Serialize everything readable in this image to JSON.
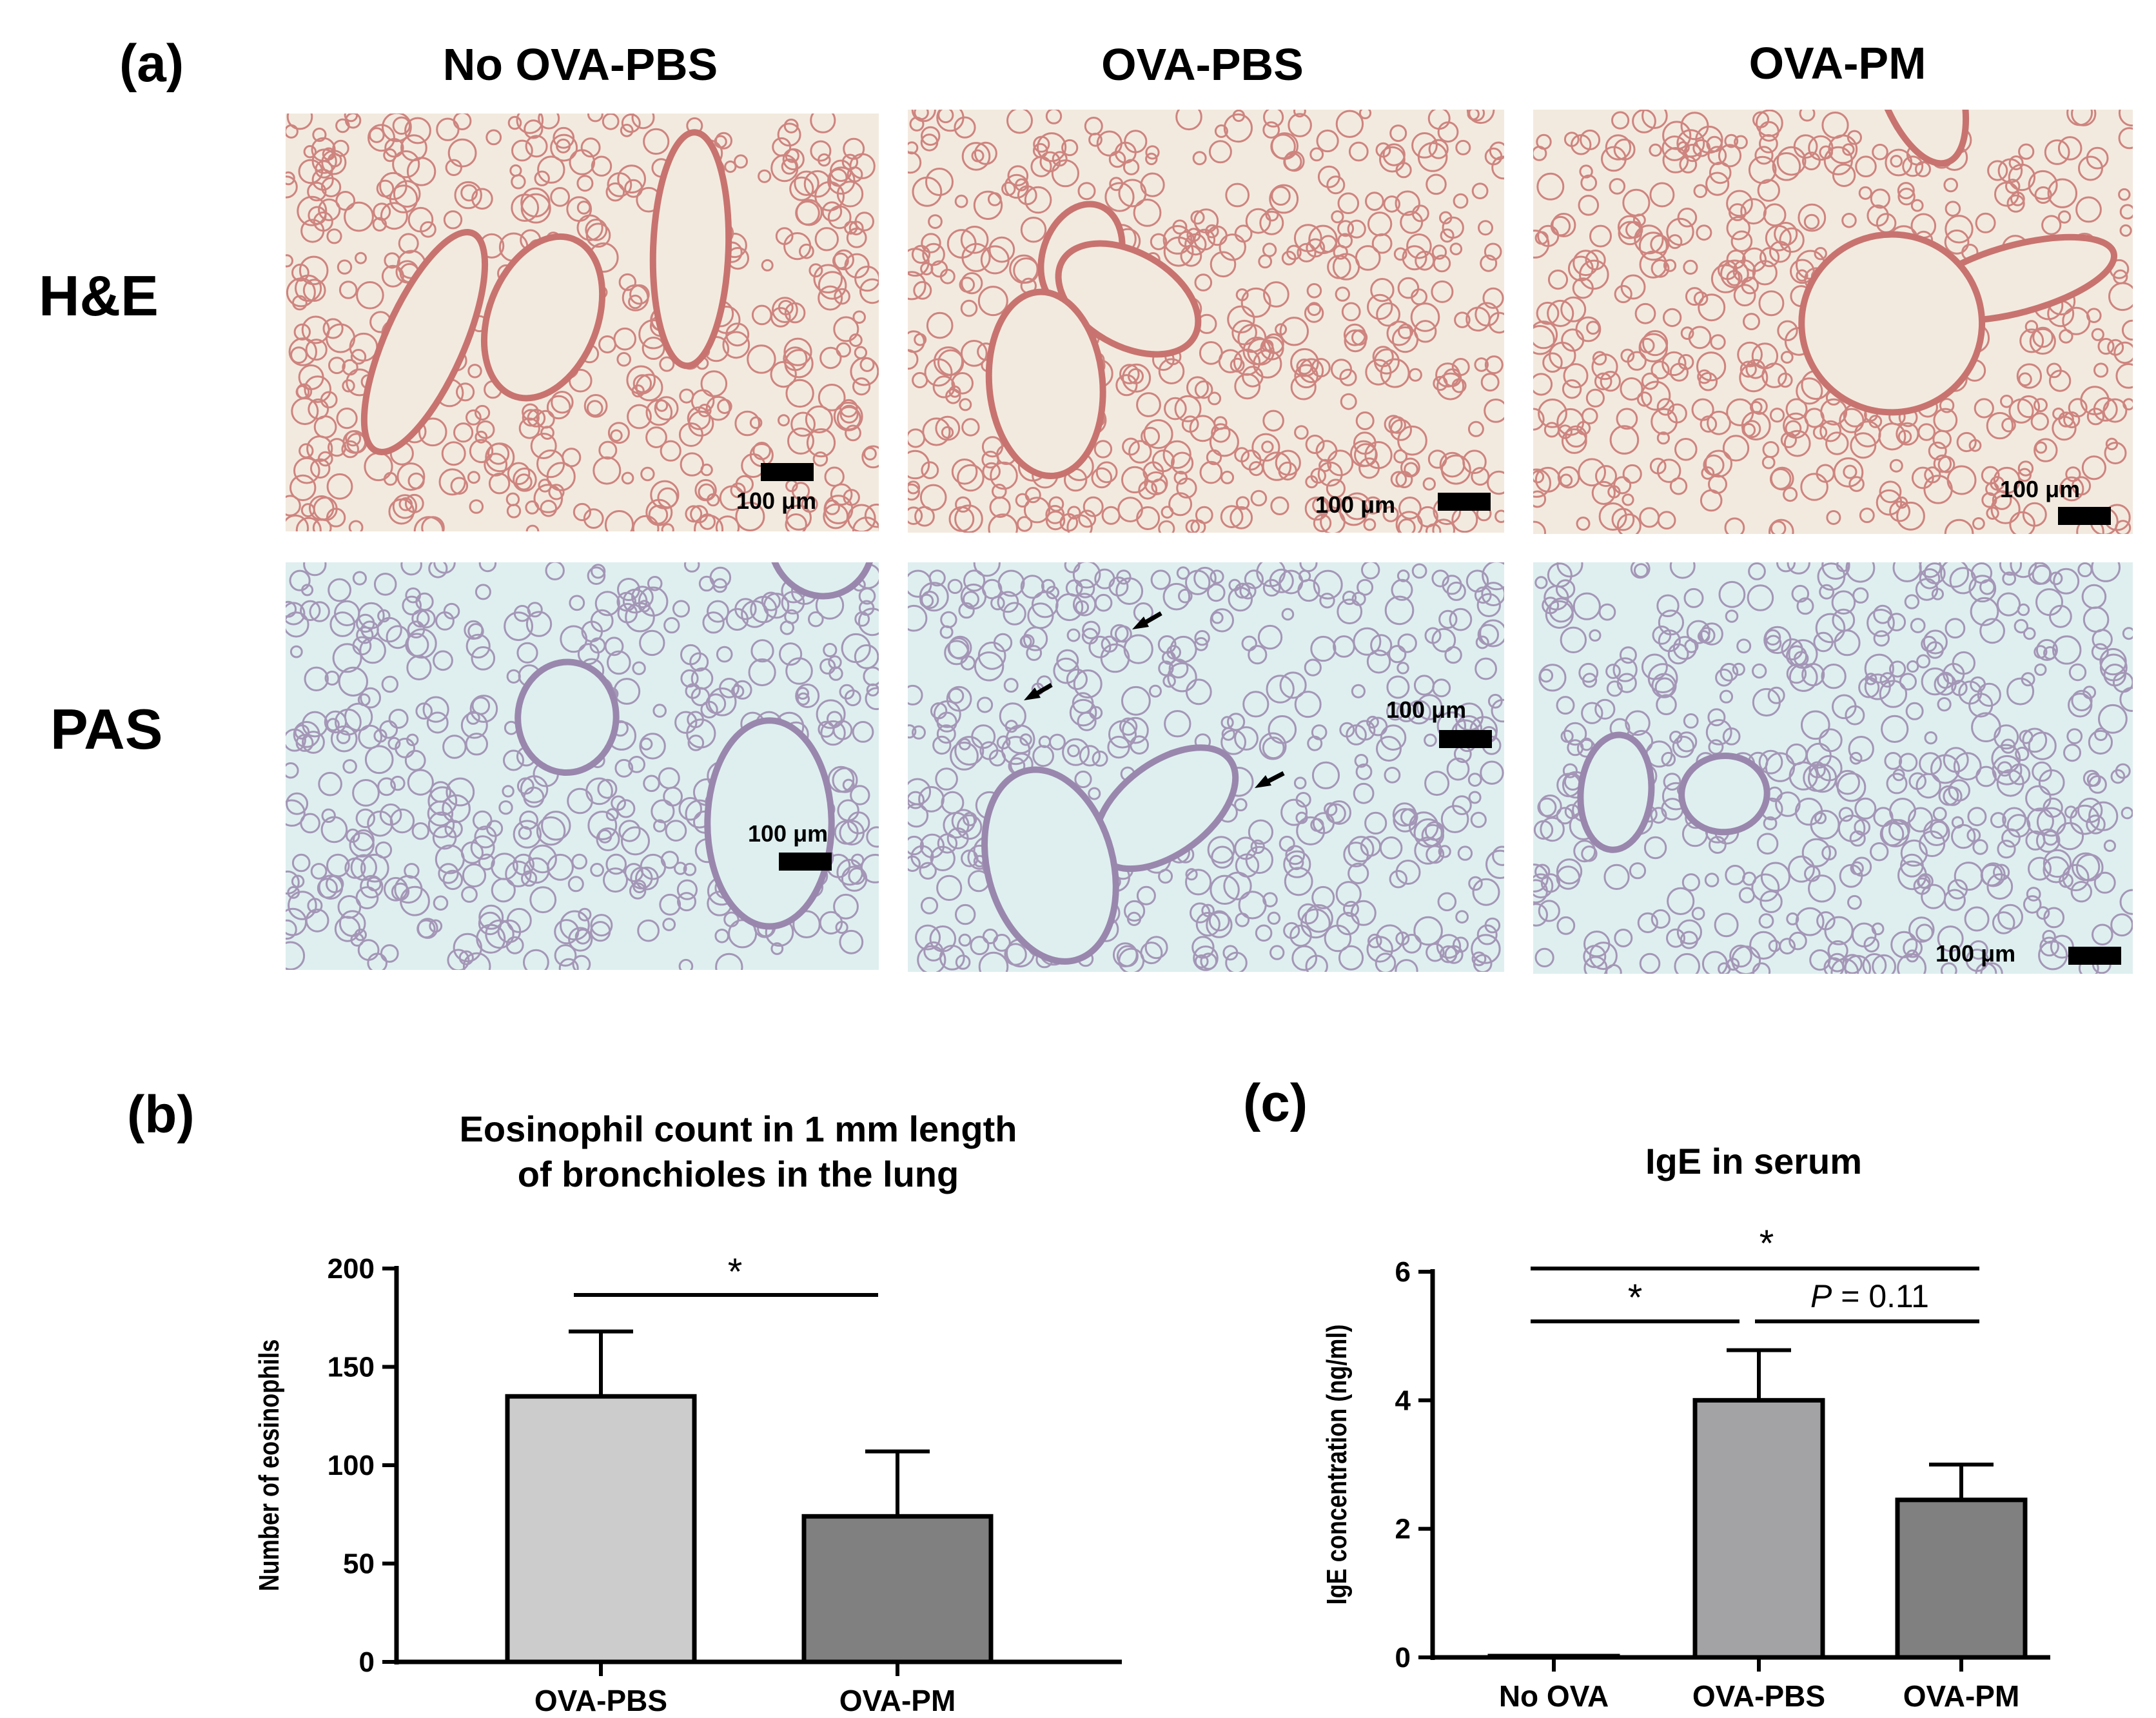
{
  "panel_a": {
    "letter": "(a)",
    "columns": [
      "No OVA-PBS",
      "OVA-PBS",
      "OVA-PM"
    ],
    "rows": [
      "H&E",
      "PAS"
    ],
    "scale_label": "100 μm",
    "colors": {
      "he_bg": "#f3eadf",
      "he_tissue": "#c8736f",
      "pas_bg": "#dfeff0",
      "pas_tissue": "#9a87ad"
    }
  },
  "panel_b": {
    "letter": "(b)",
    "title_line1": "Eosinophil count in 1 mm length",
    "title_line2": "of bronchioles in the lung",
    "significance": "*"
  },
  "panel_c": {
    "letter": "(c)",
    "title": "IgE in serum",
    "significance_outer": "*",
    "significance_left": "*",
    "p_label": "P",
    "p_value": " = 0.11"
  },
  "chart_data": [
    {
      "type": "bar",
      "title": "Eosinophil count in 1 mm length of bronchioles in the lung",
      "categories": [
        "OVA-PBS",
        "OVA-PM"
      ],
      "values": [
        135,
        74
      ],
      "errors": [
        33,
        33
      ],
      "colors": [
        "#cccccc",
        "#808080"
      ],
      "ylabel": "Number of eosinophils",
      "ylim": [
        0,
        200
      ],
      "yticks": [
        0,
        50,
        100,
        150,
        200
      ]
    },
    {
      "type": "bar",
      "title": "IgE in serum",
      "categories": [
        "No OVA",
        "OVA-PBS",
        "OVA-PM"
      ],
      "values": [
        0.02,
        4.0,
        2.45
      ],
      "errors": [
        0,
        0.78,
        0.55
      ],
      "colors": [
        "#ffffff",
        "#a3a3a6",
        "#808080"
      ],
      "ylabel": "IgE concentration (ng/ml)",
      "ylim": [
        0,
        6
      ],
      "yticks": [
        0,
        2,
        4,
        6
      ]
    }
  ]
}
